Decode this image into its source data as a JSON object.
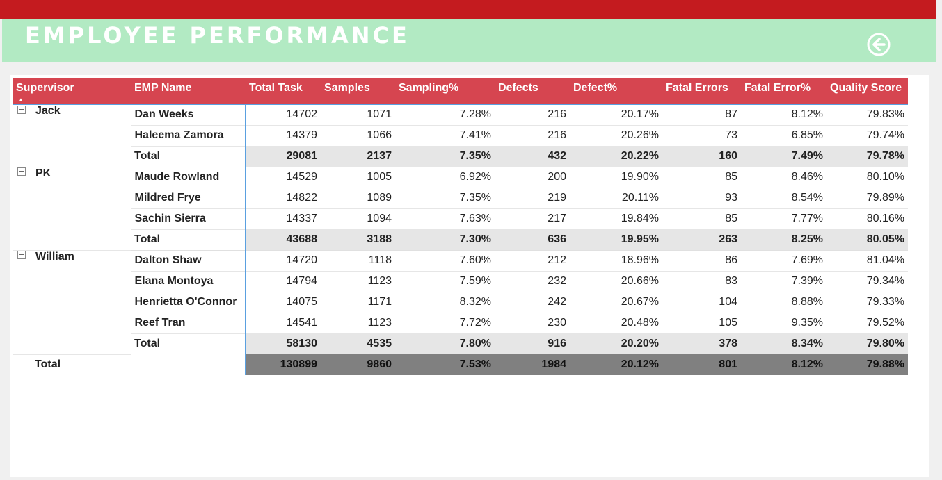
{
  "header": {
    "title": "EMPLOYEE PERFORMANCE",
    "back_icon": "arrow-left-circle-icon",
    "colors": {
      "topbar": "#c41b1f",
      "titlebar": "#b2eac3",
      "table_header": "#d64550",
      "subtotal": "#e6e6e6",
      "grand_total": "#808080"
    }
  },
  "table": {
    "columns": [
      "Supervisor",
      "EMP Name",
      "Total Task",
      "Samples",
      "Sampling%",
      "Defects",
      "Defect%",
      "Fatal Errors",
      "Fatal Error%",
      "Quality Score"
    ],
    "groups": [
      {
        "supervisor": "Jack",
        "rows": [
          {
            "name": "Dan Weeks",
            "values": [
              "14702",
              "1071",
              "7.28%",
              "216",
              "20.17%",
              "87",
              "8.12%",
              "79.83%"
            ]
          },
          {
            "name": "Haleema Zamora",
            "values": [
              "14379",
              "1066",
              "7.41%",
              "216",
              "20.26%",
              "73",
              "6.85%",
              "79.74%"
            ]
          }
        ],
        "total": {
          "label": "Total",
          "values": [
            "29081",
            "2137",
            "7.35%",
            "432",
            "20.22%",
            "160",
            "7.49%",
            "79.78%"
          ]
        }
      },
      {
        "supervisor": "PK",
        "rows": [
          {
            "name": "Maude Rowland",
            "values": [
              "14529",
              "1005",
              "6.92%",
              "200",
              "19.90%",
              "85",
              "8.46%",
              "80.10%"
            ]
          },
          {
            "name": "Mildred Frye",
            "values": [
              "14822",
              "1089",
              "7.35%",
              "219",
              "20.11%",
              "93",
              "8.54%",
              "79.89%"
            ]
          },
          {
            "name": "Sachin Sierra",
            "values": [
              "14337",
              "1094",
              "7.63%",
              "217",
              "19.84%",
              "85",
              "7.77%",
              "80.16%"
            ]
          }
        ],
        "total": {
          "label": "Total",
          "values": [
            "43688",
            "3188",
            "7.30%",
            "636",
            "19.95%",
            "263",
            "8.25%",
            "80.05%"
          ]
        }
      },
      {
        "supervisor": "William",
        "rows": [
          {
            "name": "Dalton Shaw",
            "values": [
              "14720",
              "1118",
              "7.60%",
              "212",
              "18.96%",
              "86",
              "7.69%",
              "81.04%"
            ]
          },
          {
            "name": "Elana Montoya",
            "values": [
              "14794",
              "1123",
              "7.59%",
              "232",
              "20.66%",
              "83",
              "7.39%",
              "79.34%"
            ]
          },
          {
            "name": "Henrietta O'Connor",
            "values": [
              "14075",
              "1171",
              "8.32%",
              "242",
              "20.67%",
              "104",
              "8.88%",
              "79.33%"
            ]
          },
          {
            "name": "Reef Tran",
            "values": [
              "14541",
              "1123",
              "7.72%",
              "230",
              "20.48%",
              "105",
              "9.35%",
              "79.52%"
            ]
          }
        ],
        "total": {
          "label": "Total",
          "values": [
            "58130",
            "4535",
            "7.80%",
            "916",
            "20.20%",
            "378",
            "8.34%",
            "79.80%"
          ]
        }
      }
    ],
    "grand_total": {
      "label": "Total",
      "values": [
        "130899",
        "9860",
        "7.53%",
        "1984",
        "20.12%",
        "801",
        "8.12%",
        "79.88%"
      ]
    }
  }
}
